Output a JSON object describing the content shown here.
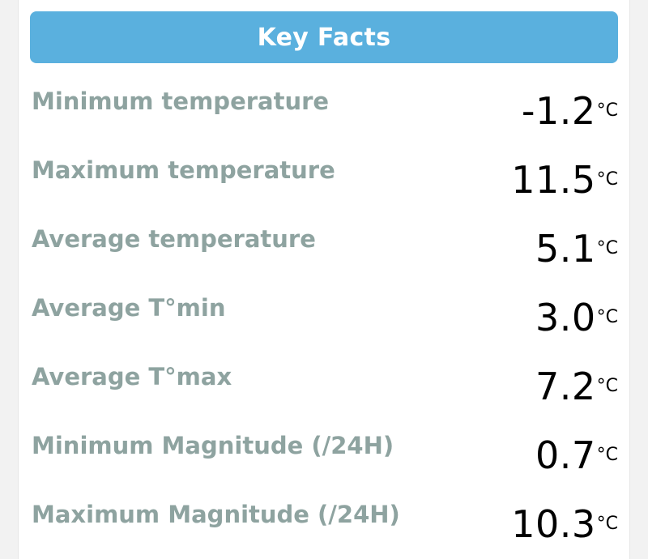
{
  "header": {
    "title": "Key Facts"
  },
  "rows": [
    {
      "label": "Minimum temperature",
      "value": "-1.2",
      "unit": "°C"
    },
    {
      "label": "Maximum temperature",
      "value": "11.5",
      "unit": "°C"
    },
    {
      "label": "Average temperature",
      "value": "5.1",
      "unit": "°C"
    },
    {
      "label": "Average T°min",
      "value": "3.0",
      "unit": "°C"
    },
    {
      "label": "Average T°max",
      "value": "7.2",
      "unit": "°C"
    },
    {
      "label": "Minimum Magnitude (/24H)",
      "value": "0.7",
      "unit": "°C"
    },
    {
      "label": "Maximum Magnitude (/24H)",
      "value": "10.3",
      "unit": "°C"
    }
  ],
  "colors": {
    "header_bg": "#5ab0de",
    "label_text": "#8ea3a0",
    "value_text": "#000000"
  }
}
